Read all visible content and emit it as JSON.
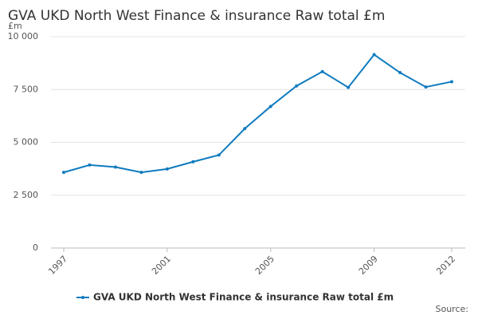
{
  "chart_data": {
    "type": "line",
    "title": "GVA UKD North West Finance & insurance Raw total £m",
    "y_label": "£m",
    "source": "Source:",
    "x": [
      1997,
      1998,
      1999,
      2000,
      2001,
      2002,
      2003,
      2004,
      2005,
      2006,
      2007,
      2008,
      2009,
      2010,
      2011,
      2012
    ],
    "series": [
      {
        "name": "GVA UKD North West Finance & insurance Raw total £m",
        "color": "#0f7bbf",
        "values": [
          3580,
          3930,
          3830,
          3580,
          3740,
          4080,
          4400,
          5650,
          6700,
          7670,
          8350,
          7600,
          9150,
          8300,
          7620,
          7870
        ]
      }
    ],
    "xlim": [
      1997,
      2012
    ],
    "xticks": [
      1997,
      2001,
      2005,
      2009,
      2012
    ],
    "ylim": [
      0,
      10000
    ],
    "yticks": [
      0,
      {
        "value": 2500,
        "label": "2 500"
      },
      {
        "value": 5000,
        "label": "5 000"
      },
      {
        "value": 7500,
        "label": "7 500"
      },
      {
        "value": 10000,
        "label": "10 000"
      }
    ],
    "grid": true
  }
}
